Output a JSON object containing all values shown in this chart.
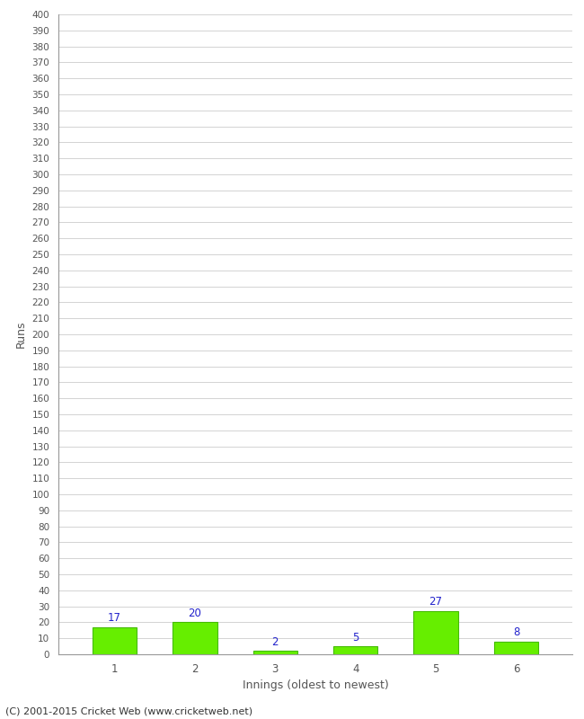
{
  "innings": [
    1,
    2,
    3,
    4,
    5,
    6
  ],
  "runs": [
    17,
    20,
    2,
    5,
    27,
    8
  ],
  "bar_color": "#66ee00",
  "bar_edge_color": "#44bb00",
  "xlabel": "Innings (oldest to newest)",
  "ylabel": "Runs",
  "footer": "(C) 2001-2015 Cricket Web (www.cricketweb.net)",
  "ylim": [
    0,
    400
  ],
  "label_color": "#2222cc",
  "background_color": "#ffffff",
  "grid_color": "#cccccc",
  "tick_color": "#555555",
  "spine_color": "#999999"
}
